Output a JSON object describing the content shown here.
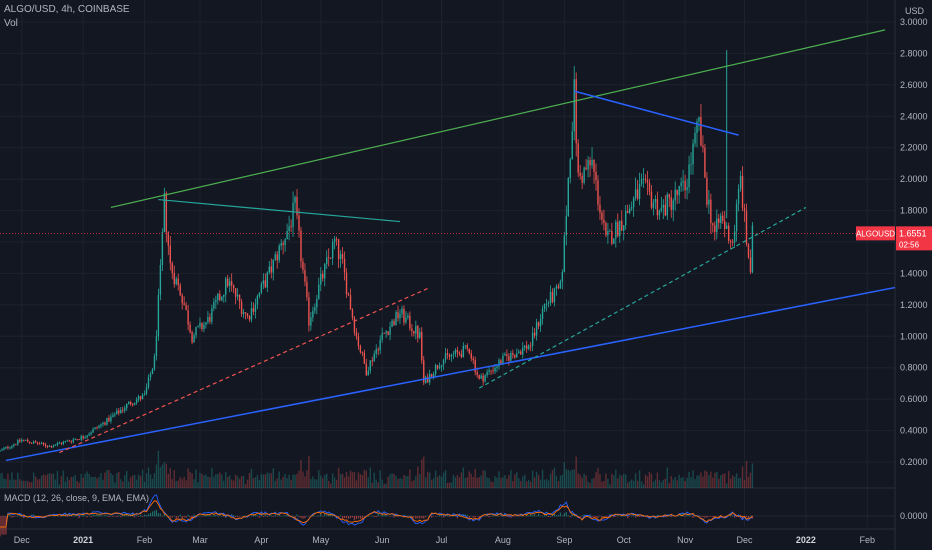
{
  "header": {
    "symbol_line": "ALGO/USD, 4h, COINBASE",
    "volume_label": "Vol"
  },
  "price_axis": {
    "currency": "USD",
    "ticks": [
      "3.0000",
      "2.8000",
      "2.6000",
      "2.4000",
      "2.2000",
      "2.0000",
      "1.8000",
      "1.6000",
      "1.4000",
      "1.2000",
      "1.0000",
      "0.8000",
      "0.6000",
      "0.4000",
      "0.2000"
    ]
  },
  "macd": {
    "label": "MACD (12, 26, close, 9, EMA, EMA)",
    "tick": "0.0000"
  },
  "last_price": {
    "symbol": "ALGOUSD",
    "price": "1.6551",
    "countdown": "02:56",
    "color": "#f23645"
  },
  "time_axis": {
    "labels": [
      {
        "text": "Dec",
        "bold": false
      },
      {
        "text": "2021",
        "bold": true
      },
      {
        "text": "Feb",
        "bold": false
      },
      {
        "text": "Mar",
        "bold": false
      },
      {
        "text": "Apr",
        "bold": false
      },
      {
        "text": "May",
        "bold": false
      },
      {
        "text": "Jun",
        "bold": false
      },
      {
        "text": "Jul",
        "bold": false
      },
      {
        "text": "Aug",
        "bold": false
      },
      {
        "text": "Sep",
        "bold": false
      },
      {
        "text": "Oct",
        "bold": false
      },
      {
        "text": "Nov",
        "bold": false
      },
      {
        "text": "Dec",
        "bold": false
      },
      {
        "text": "2022",
        "bold": true
      },
      {
        "text": "Feb",
        "bold": false
      }
    ]
  },
  "colors": {
    "background": "#131722",
    "grid": "#1e222d",
    "up": "#26a69a",
    "down": "#ef5350",
    "upper_trendline": "#4caf50",
    "lower_trendline": "#2962ff",
    "resistance_1": "#26a69a",
    "resistance_2": "#2962ff",
    "support_dashed_1": "#ef5350",
    "support_dashed_2": "#26a69a",
    "macd_line": "#2962ff",
    "signal_line": "#ff6d00"
  },
  "chart_data": {
    "type": "candlestick",
    "timeframe": "4h",
    "x_range": [
      "2020-11-20",
      "2022-02-15"
    ],
    "ylim": [
      0.1,
      3.05
    ],
    "close_path": [
      [
        "2020-11-20",
        0.27
      ],
      [
        "2020-12-01",
        0.34
      ],
      [
        "2020-12-15",
        0.3
      ],
      [
        "2021-01-01",
        0.36
      ],
      [
        "2021-01-15",
        0.48
      ],
      [
        "2021-01-25",
        0.58
      ],
      [
        "2021-02-01",
        0.62
      ],
      [
        "2021-02-06",
        0.85
      ],
      [
        "2021-02-09",
        1.4
      ],
      [
        "2021-02-11",
        1.85
      ],
      [
        "2021-02-14",
        1.45
      ],
      [
        "2021-02-20",
        1.25
      ],
      [
        "2021-02-25",
        1.0
      ],
      [
        "2021-03-05",
        1.1
      ],
      [
        "2021-03-15",
        1.35
      ],
      [
        "2021-03-25",
        1.12
      ],
      [
        "2021-04-05",
        1.4
      ],
      [
        "2021-04-15",
        1.7
      ],
      [
        "2021-04-18",
        1.82
      ],
      [
        "2021-04-25",
        1.1
      ],
      [
        "2021-05-01",
        1.35
      ],
      [
        "2021-05-08",
        1.6
      ],
      [
        "2021-05-12",
        1.45
      ],
      [
        "2021-05-19",
        1.0
      ],
      [
        "2021-05-24",
        0.78
      ],
      [
        "2021-06-01",
        1.0
      ],
      [
        "2021-06-10",
        1.15
      ],
      [
        "2021-06-20",
        1.0
      ],
      [
        "2021-06-22",
        0.7
      ],
      [
        "2021-07-01",
        0.85
      ],
      [
        "2021-07-15",
        0.92
      ],
      [
        "2021-07-20",
        0.72
      ],
      [
        "2021-08-01",
        0.85
      ],
      [
        "2021-08-15",
        0.95
      ],
      [
        "2021-08-22",
        1.2
      ],
      [
        "2021-08-30",
        1.3
      ],
      [
        "2021-09-01",
        1.6
      ],
      [
        "2021-09-04",
        2.2
      ],
      [
        "2021-09-06",
        2.55
      ],
      [
        "2021-09-08",
        2.0
      ],
      [
        "2021-09-15",
        2.1
      ],
      [
        "2021-09-22",
        1.6
      ],
      [
        "2021-10-01",
        1.75
      ],
      [
        "2021-10-10",
        1.95
      ],
      [
        "2021-10-20",
        1.8
      ],
      [
        "2021-11-01",
        1.95
      ],
      [
        "2021-11-08",
        2.35
      ],
      [
        "2021-11-12",
        1.9
      ],
      [
        "2021-11-16",
        1.65
      ],
      [
        "2021-11-19",
        1.75
      ],
      [
        "2021-11-25",
        1.6
      ],
      [
        "2021-11-29",
        2.0
      ],
      [
        "2021-12-02",
        1.6
      ],
      [
        "2021-12-04",
        1.42
      ],
      [
        "2021-12-05",
        1.6551
      ]
    ],
    "wick_high": {
      "date": "2021-11-22",
      "value": 2.82
    },
    "trendlines": [
      {
        "name": "upper",
        "from": [
          "2021-01-15",
          1.82
        ],
        "to": [
          "2022-02-10",
          2.95
        ]
      },
      {
        "name": "lower",
        "from": [
          "2020-11-23",
          0.21
        ],
        "to": [
          "2022-02-15",
          1.31
        ]
      },
      {
        "name": "resistance_1",
        "from": [
          "2021-02-08",
          1.87
        ],
        "to": [
          "2021-06-10",
          1.73
        ]
      },
      {
        "name": "resistance_2",
        "from": [
          "2021-09-06",
          2.56
        ],
        "to": [
          "2021-11-28",
          2.28
        ]
      },
      {
        "name": "support_dashed_1",
        "from": [
          "2020-12-20",
          0.26
        ],
        "to": [
          "2021-06-25",
          1.31
        ]
      },
      {
        "name": "support_dashed_2",
        "from": [
          "2021-07-20",
          0.67
        ],
        "to": [
          "2022-01-01",
          1.82
        ]
      }
    ]
  }
}
